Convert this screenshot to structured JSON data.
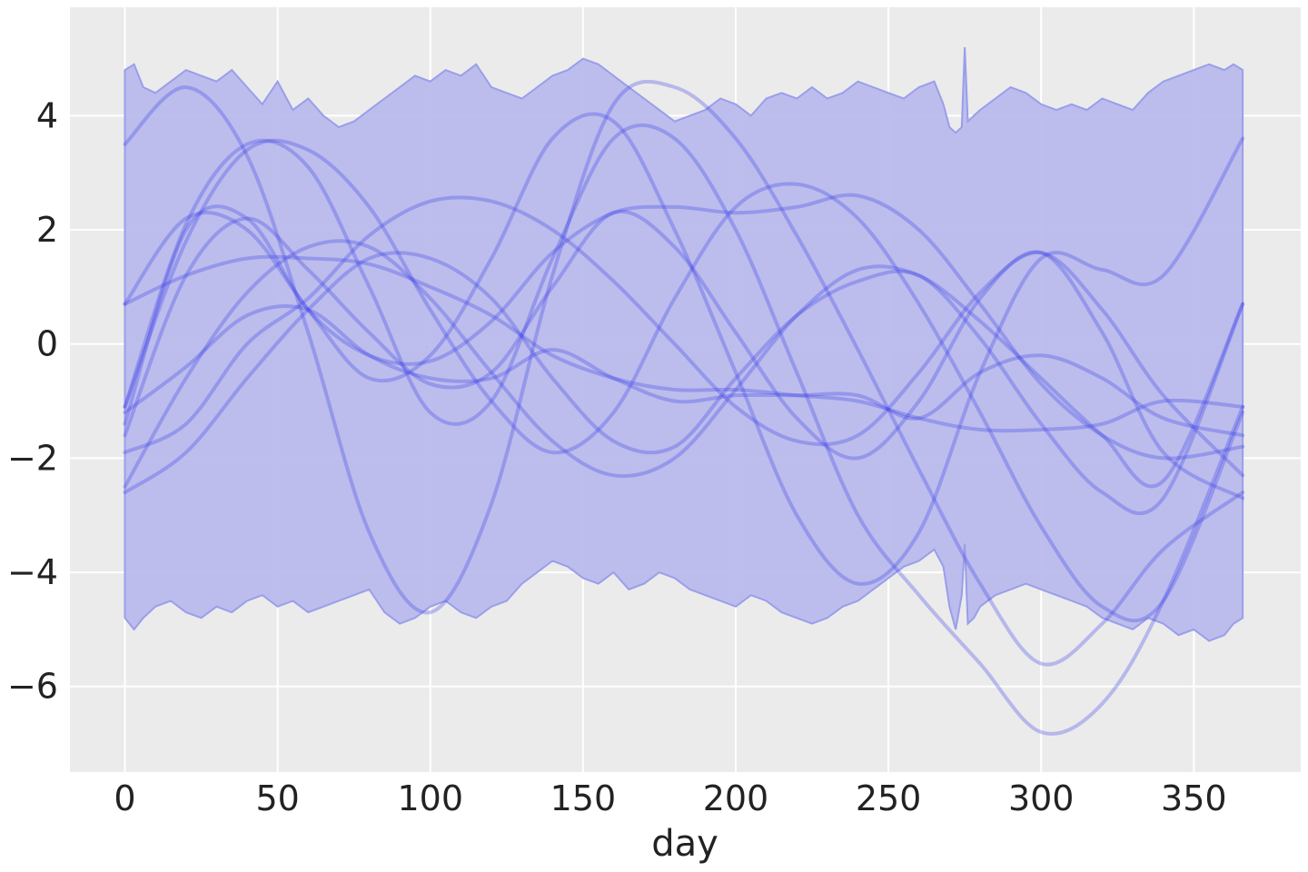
{
  "chart_data": {
    "type": "line",
    "xlabel": "day",
    "ylabel": "",
    "xlim": [
      -18,
      385
    ],
    "ylim": [
      -7.5,
      5.9
    ],
    "xticks": [
      0,
      50,
      100,
      150,
      200,
      250,
      300,
      350
    ],
    "yticks": [
      4,
      2,
      0,
      -2,
      -4,
      -6
    ],
    "ytick_labels": [
      "4",
      "2",
      "0",
      "−2",
      "−4",
      "−6"
    ],
    "grid": true,
    "colors": {
      "background": "#EBEBEB",
      "grid": "#FFFFFF",
      "band": "#B9BBEC",
      "band_edge": "#9A9EEA",
      "line": "#3A3FE8"
    },
    "band": {
      "x": [
        0,
        3,
        6,
        10,
        15,
        20,
        25,
        30,
        35,
        40,
        45,
        50,
        55,
        60,
        65,
        70,
        75,
        80,
        85,
        90,
        95,
        100,
        105,
        110,
        115,
        120,
        125,
        130,
        135,
        140,
        145,
        150,
        155,
        160,
        165,
        170,
        175,
        180,
        185,
        190,
        195,
        200,
        205,
        210,
        215,
        220,
        225,
        230,
        235,
        240,
        245,
        250,
        255,
        260,
        265,
        268,
        270,
        272,
        274,
        275,
        276,
        278,
        280,
        285,
        290,
        295,
        300,
        305,
        310,
        315,
        320,
        325,
        330,
        335,
        340,
        345,
        350,
        355,
        360,
        363,
        366
      ],
      "upper": [
        4.8,
        4.9,
        4.5,
        4.4,
        4.6,
        4.8,
        4.7,
        4.6,
        4.8,
        4.5,
        4.2,
        4.6,
        4.1,
        4.3,
        4.0,
        3.8,
        3.9,
        4.1,
        4.3,
        4.5,
        4.7,
        4.6,
        4.8,
        4.7,
        4.9,
        4.5,
        4.4,
        4.3,
        4.5,
        4.7,
        4.8,
        5.0,
        4.9,
        4.7,
        4.5,
        4.3,
        4.1,
        3.9,
        4.0,
        4.1,
        4.3,
        4.2,
        4.0,
        4.3,
        4.4,
        4.3,
        4.5,
        4.3,
        4.4,
        4.6,
        4.5,
        4.4,
        4.3,
        4.5,
        4.6,
        4.2,
        3.8,
        3.7,
        3.8,
        5.2,
        3.9,
        4.0,
        4.1,
        4.3,
        4.5,
        4.4,
        4.2,
        4.1,
        4.2,
        4.1,
        4.3,
        4.2,
        4.1,
        4.4,
        4.6,
        4.7,
        4.8,
        4.9,
        4.8,
        4.9,
        4.8
      ],
      "lower": [
        -4.8,
        -5.0,
        -4.8,
        -4.6,
        -4.5,
        -4.7,
        -4.8,
        -4.6,
        -4.7,
        -4.5,
        -4.4,
        -4.6,
        -4.5,
        -4.7,
        -4.6,
        -4.5,
        -4.4,
        -4.3,
        -4.7,
        -4.9,
        -4.8,
        -4.6,
        -4.5,
        -4.7,
        -4.8,
        -4.6,
        -4.5,
        -4.2,
        -4.0,
        -3.8,
        -3.9,
        -4.1,
        -4.2,
        -4.0,
        -4.3,
        -4.2,
        -4.0,
        -4.1,
        -4.3,
        -4.4,
        -4.5,
        -4.6,
        -4.4,
        -4.5,
        -4.7,
        -4.8,
        -4.9,
        -4.8,
        -4.6,
        -4.5,
        -4.3,
        -4.1,
        -3.9,
        -3.8,
        -3.6,
        -3.9,
        -4.6,
        -5.0,
        -4.4,
        -3.5,
        -4.9,
        -4.8,
        -4.6,
        -4.4,
        -4.3,
        -4.2,
        -4.3,
        -4.4,
        -4.5,
        -4.6,
        -4.8,
        -4.9,
        -5.0,
        -4.8,
        -4.9,
        -5.1,
        -5.0,
        -5.2,
        -5.1,
        -4.9,
        -4.8
      ]
    },
    "series": [
      {
        "x": [
          0,
          20,
          40,
          60,
          80,
          100,
          120,
          140,
          160,
          180,
          200,
          220,
          240,
          260,
          280,
          300,
          320,
          340,
          366
        ],
        "y": [
          3.5,
          4.5,
          3.3,
          0.2,
          -3.3,
          -4.7,
          -2.8,
          1.2,
          4.2,
          4.5,
          3.6,
          1.9,
          -0.1,
          -2.2,
          -4.2,
          -5.6,
          -4.9,
          -3.6,
          -2.6
        ]
      },
      {
        "x": [
          0,
          20,
          40,
          60,
          80,
          100,
          120,
          140,
          160,
          180,
          200,
          220,
          240,
          260,
          280,
          300,
          320,
          340,
          366
        ],
        "y": [
          -1.1,
          2.1,
          3.5,
          3.1,
          1.0,
          -1.2,
          -1.0,
          1.5,
          3.6,
          3.6,
          2.0,
          -0.5,
          -3.0,
          -4.4,
          -5.6,
          -6.8,
          -6.3,
          -4.5,
          -1.1
        ]
      },
      {
        "x": [
          0,
          20,
          40,
          60,
          80,
          100,
          120,
          140,
          160,
          180,
          200,
          220,
          240,
          260,
          280,
          300,
          320,
          340,
          366
        ],
        "y": [
          0.7,
          2.2,
          2.0,
          0.6,
          -0.6,
          -0.2,
          1.5,
          3.6,
          3.9,
          2.0,
          -0.5,
          -3.0,
          -4.2,
          -3.3,
          -0.5,
          1.5,
          1.3,
          1.2,
          3.6
        ]
      },
      {
        "x": [
          0,
          20,
          40,
          60,
          80,
          100,
          120,
          140,
          160,
          180,
          200,
          220,
          240,
          260,
          280,
          300,
          320,
          340,
          366
        ],
        "y": [
          -1.1,
          1.8,
          3.4,
          3.4,
          2.4,
          0.6,
          -1.0,
          -1.9,
          -1.2,
          0.8,
          2.4,
          2.8,
          2.2,
          0.7,
          -1.2,
          -3.2,
          -4.6,
          -4.5,
          -1.2
        ]
      },
      {
        "x": [
          0,
          20,
          40,
          60,
          80,
          100,
          120,
          140,
          160,
          180,
          200,
          220,
          240,
          260,
          280,
          300,
          320,
          340,
          366
        ],
        "y": [
          -1.4,
          2.0,
          2.2,
          0.6,
          -0.2,
          -0.3,
          0.4,
          1.6,
          2.3,
          2.4,
          2.3,
          2.4,
          2.6,
          2.0,
          0.7,
          -0.7,
          -1.6,
          -2.0,
          -1.8
        ]
      },
      {
        "x": [
          0,
          20,
          40,
          60,
          80,
          100,
          120,
          140,
          160,
          180,
          200,
          220,
          240,
          260,
          280,
          300,
          320,
          340,
          366
        ],
        "y": [
          -1.6,
          1.2,
          2.2,
          1.3,
          0.2,
          -0.7,
          -0.5,
          1.0,
          2.3,
          1.7,
          0.2,
          -1.3,
          -2.0,
          -1.0,
          0.8,
          1.6,
          0.2,
          -1.9,
          -2.7
        ]
      },
      {
        "x": [
          0,
          20,
          40,
          60,
          80,
          100,
          120,
          140,
          160,
          180,
          200,
          220,
          240,
          260,
          280,
          300,
          320,
          340,
          366
        ],
        "y": [
          -1.9,
          -1.4,
          0.0,
          0.8,
          1.9,
          2.5,
          2.5,
          2.0,
          1.1,
          0.0,
          -1.1,
          -1.7,
          -1.6,
          -0.5,
          0.9,
          1.6,
          0.6,
          -0.9,
          -2.3
        ]
      },
      {
        "x": [
          0,
          20,
          40,
          60,
          80,
          100,
          120,
          140,
          160,
          180,
          200,
          220,
          240,
          260,
          280,
          300,
          320,
          340,
          366
        ],
        "y": [
          -2.6,
          -1.9,
          -0.6,
          0.6,
          1.5,
          1.5,
          0.8,
          -0.6,
          -1.7,
          -1.8,
          -0.6,
          0.5,
          1.1,
          1.2,
          0.1,
          -1.4,
          -2.6,
          -2.7,
          0.7
        ]
      },
      {
        "x": [
          0,
          20,
          40,
          60,
          80,
          100,
          120,
          140,
          160,
          180,
          200,
          220,
          240,
          260,
          280,
          300,
          320,
          340,
          366
        ],
        "y": [
          -2.5,
          -0.6,
          0.9,
          1.7,
          1.7,
          0.8,
          -0.5,
          -1.7,
          -2.3,
          -2.0,
          -0.8,
          0.5,
          1.3,
          1.2,
          0.4,
          -0.6,
          -1.6,
          -2.4,
          0.7
        ]
      },
      {
        "x": [
          0,
          20,
          40,
          60,
          80,
          100,
          120,
          140,
          160,
          180,
          200,
          220,
          240,
          260,
          280,
          300,
          320,
          340,
          366
        ],
        "y": [
          0.7,
          1.2,
          1.5,
          1.5,
          1.4,
          1.0,
          0.5,
          -0.2,
          -0.6,
          -0.8,
          -0.8,
          -0.9,
          -1.0,
          -1.3,
          -1.5,
          -1.5,
          -1.4,
          -1.0,
          -1.1
        ]
      },
      {
        "x": [
          0,
          20,
          40,
          60,
          80,
          100,
          120,
          140,
          160,
          180,
          200,
          220,
          240,
          260,
          280,
          300,
          320,
          340,
          366
        ],
        "y": [
          -1.2,
          -0.4,
          0.5,
          0.6,
          -0.2,
          -0.6,
          -0.6,
          -0.1,
          -0.6,
          -1.0,
          -0.9,
          -0.9,
          -0.9,
          -1.3,
          -0.5,
          -0.2,
          -0.6,
          -1.3,
          -1.6
        ]
      }
    ]
  }
}
